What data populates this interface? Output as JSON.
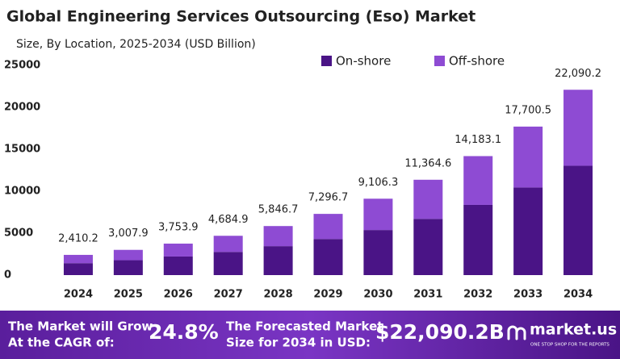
{
  "chart_data": {
    "type": "stacked-bar",
    "title": "Global Engineering Services Outsourcing (Eso) Market",
    "subtitle": "Size, By Location, 2025-2034 (USD Billion)",
    "categories": [
      "2024",
      "2025",
      "2026",
      "2027",
      "2028",
      "2029",
      "2030",
      "2031",
      "2032",
      "2033",
      "2034"
    ],
    "series": [
      {
        "name": "On-shore",
        "color": "#4a1486",
        "values": [
          1422.0,
          1774.7,
          2214.8,
          2764.1,
          3449.6,
          4305.0,
          5372.7,
          6705.1,
          8368.0,
          10443.3,
          13033.2
        ]
      },
      {
        "name": "Off-shore",
        "color": "#8e4bd3",
        "values": [
          988.2,
          1233.2,
          1539.1,
          1920.8,
          2397.1,
          2991.7,
          3733.6,
          4659.5,
          5815.1,
          7257.2,
          9057.0
        ]
      }
    ],
    "totals": [
      2410.2,
      3007.9,
      3753.9,
      4684.9,
      5846.7,
      7296.7,
      9106.3,
      11364.6,
      14183.1,
      17700.5,
      22090.2
    ],
    "total_labels": [
      "2,410.2",
      "3,007.9",
      "3,753.9",
      "4,684.9",
      "5,846.7",
      "7,296.7",
      "9,106.3",
      "11,364.6",
      "14,183.1",
      "17,700.5",
      "22,090.2"
    ],
    "ylim": [
      0,
      25000
    ],
    "yticks": [
      0,
      5000,
      10000,
      15000,
      20000,
      25000
    ],
    "grid": false,
    "legend": "top-right"
  },
  "banner": {
    "cagr_text_1": "The Market will Grow",
    "cagr_text_2": "At the CAGR of:",
    "cagr": "24.8%",
    "forecast_text_1": "The Forecasted Market",
    "forecast_text_2": "Size for 2034 in USD:",
    "forecast": "$22,090.2B",
    "brand": "market.us",
    "tagline": "ONE STOP SHOP FOR THE REPORTS"
  }
}
